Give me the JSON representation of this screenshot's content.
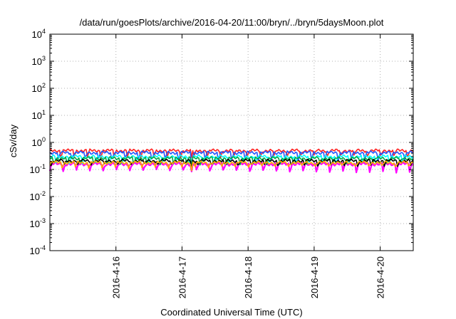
{
  "chart_data": {
    "type": "line",
    "title": "/data/run/goesPlots/archive/2016-04-20/11:00/bryn/../bryn/5daysMoon.plot",
    "xlabel": "Coordinated Universal Time (UTC)",
    "ylabel": "cSv/day",
    "yscale": "log",
    "ylim": [
      0.0001,
      10000
    ],
    "y_ticks": [
      {
        "base": "10",
        "exp": "-4"
      },
      {
        "base": "10",
        "exp": "-3"
      },
      {
        "base": "10",
        "exp": "-2"
      },
      {
        "base": "10",
        "exp": "-1"
      },
      {
        "base": "10",
        "exp": "0"
      },
      {
        "base": "10",
        "exp": "1"
      },
      {
        "base": "10",
        "exp": "2"
      },
      {
        "base": "10",
        "exp": "3"
      },
      {
        "base": "10",
        "exp": "4"
      }
    ],
    "xlim": [
      "2016-04-15 00:00",
      "2016-04-20 12:00"
    ],
    "x_ticks": [
      "2016-4-16",
      "2016-4-17",
      "2016-4-18",
      "2016-4-19",
      "2016-4-20"
    ],
    "grid": true,
    "legend": "none",
    "series": [
      {
        "color": "#ff00ff",
        "baseline": 0.16,
        "dip_depth": 0.45
      },
      {
        "color": "#ff2222",
        "baseline": 0.5,
        "dip_depth": 0.4
      },
      {
        "color": "#2255ff",
        "baseline": 0.42,
        "dip_depth": 0.42
      },
      {
        "color": "#00ffff",
        "baseline": 0.3,
        "dip_depth": 0.4
      },
      {
        "color": "#00aa44",
        "baseline": 0.26,
        "dip_depth": 0.35
      },
      {
        "color": "#000000",
        "baseline": 0.21,
        "dip_depth": 0.3
      },
      {
        "color": "#ffaa00",
        "baseline": 0.18,
        "dip_depth": 0.3
      }
    ]
  }
}
